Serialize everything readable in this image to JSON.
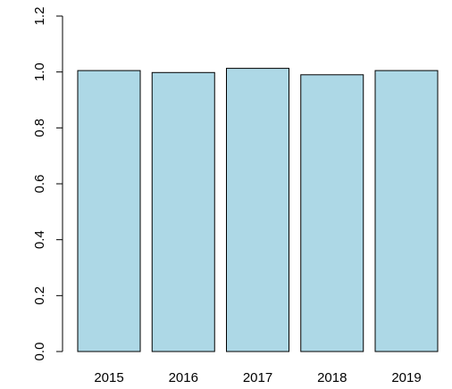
{
  "chart_data": {
    "type": "bar",
    "categories": [
      "2015",
      "2016",
      "2017",
      "2018",
      "2019"
    ],
    "values": [
      1.005,
      0.998,
      1.013,
      0.99,
      1.005
    ],
    "title": "",
    "xlabel": "",
    "ylabel": "",
    "ylim": [
      0,
      1.2
    ],
    "yticks": [
      "0.0",
      "0.2",
      "0.4",
      "0.6",
      "0.8",
      "1.0",
      "1.2"
    ],
    "grid": false,
    "bar_color": "#add8e6",
    "edge_color": "#000000"
  }
}
